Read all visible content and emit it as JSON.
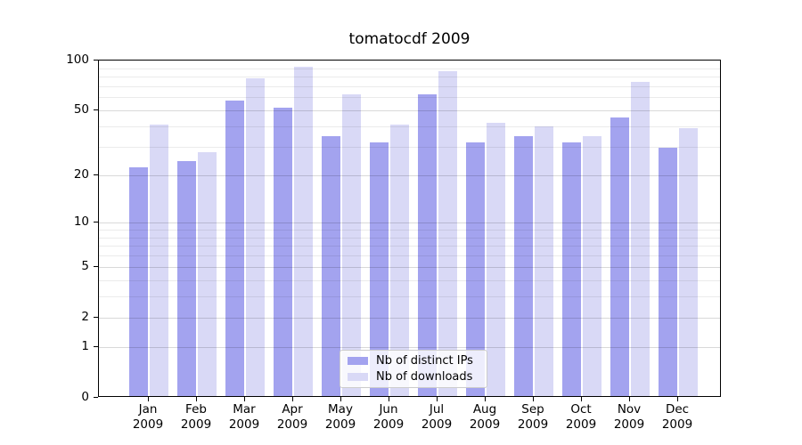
{
  "title": "tomatocdf 2009",
  "chart_data": {
    "type": "bar",
    "title": "tomatocdf 2009",
    "categories": [
      "Jan 2009",
      "Feb 2009",
      "Mar 2009",
      "Apr 2009",
      "May 2009",
      "Jun 2009",
      "Jul 2009",
      "Aug 2009",
      "Sep 2009",
      "Oct 2009",
      "Nov 2009",
      "Dec 2009"
    ],
    "series": [
      {
        "name": "Nb of distinct IPs",
        "color": "#a3a3ef",
        "values": [
          22,
          24,
          56,
          51,
          34,
          31,
          61,
          31,
          34,
          31,
          44,
          29
        ]
      },
      {
        "name": "Nb of downloads",
        "color": "#d9d9f6",
        "values": [
          40,
          27,
          76,
          89,
          61,
          40,
          84,
          41,
          39,
          34,
          73,
          38
        ]
      }
    ],
    "xlabel": "",
    "ylabel": "",
    "yscale": "log1p",
    "ylim": [
      0,
      100
    ],
    "y_major_ticks": [
      0,
      1,
      2,
      5,
      10,
      20,
      50,
      100
    ],
    "y_minor_ticks": [
      3,
      4,
      6,
      7,
      8,
      9,
      30,
      40,
      60,
      70,
      80,
      90
    ],
    "grid": "on",
    "grid_drawn_above_bars": true,
    "legend_position": "lower center"
  },
  "legend": {
    "items": [
      {
        "label": "Nb of distinct IPs",
        "swatch_color": "#a3a3ef"
      },
      {
        "label": "Nb of downloads",
        "swatch_color": "#d9d9f6"
      }
    ]
  },
  "colors": {
    "background": "#ffffff",
    "series_dark": "#a3a3ef",
    "series_light": "#d9d9f6",
    "grid_major": "#d6d6d6",
    "grid_minor": "#ebebeb",
    "axis": "#000000",
    "legend_border": "#cccccc"
  }
}
